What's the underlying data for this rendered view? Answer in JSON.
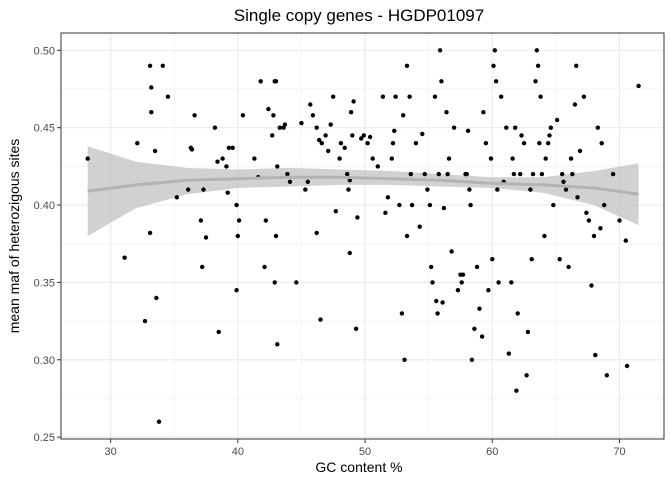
{
  "chart_data": {
    "type": "scatter",
    "title": "Single copy genes - HGDP01097",
    "xlabel": "GC content %",
    "ylabel": "mean maf of heterozigous sites",
    "xlim": [
      26.1,
      73.5
    ],
    "ylim": [
      0.2488,
      0.5112
    ],
    "x_ticks": [
      30,
      40,
      50,
      60,
      70
    ],
    "y_ticks": [
      0.25,
      0.3,
      0.35,
      0.4,
      0.45,
      0.5
    ],
    "x_tick_labels": [
      "30",
      "40",
      "50",
      "60",
      "70"
    ],
    "y_tick_labels": [
      "0.25",
      "0.30",
      "0.35",
      "0.40",
      "0.45",
      "0.50"
    ],
    "grid": true,
    "legend": "none",
    "colors": {
      "points": "#000000",
      "smooth_line": "#b3b3b3",
      "smooth_band": "#bebebe",
      "grid_major": "#ebebeb",
      "grid_minor": "#f5f5f5",
      "panel_border": "#333333"
    },
    "smooth": {
      "x": [
        28.2,
        32,
        36,
        40,
        44,
        48,
        52,
        56,
        60,
        64,
        68,
        71.5
      ],
      "y": [
        0.409,
        0.413,
        0.416,
        0.417,
        0.418,
        0.418,
        0.417,
        0.416,
        0.414,
        0.413,
        0.411,
        0.407
      ],
      "lower": [
        0.38,
        0.398,
        0.407,
        0.411,
        0.412,
        0.413,
        0.413,
        0.412,
        0.411,
        0.408,
        0.4,
        0.387
      ],
      "upper": [
        0.438,
        0.428,
        0.424,
        0.423,
        0.424,
        0.423,
        0.422,
        0.42,
        0.418,
        0.418,
        0.422,
        0.427
      ]
    },
    "points": [
      [
        28.2,
        0.43
      ],
      [
        31.1,
        0.366
      ],
      [
        32.1,
        0.44
      ],
      [
        32.7,
        0.325
      ],
      [
        33.1,
        0.49
      ],
      [
        33.2,
        0.476
      ],
      [
        33.2,
        0.46
      ],
      [
        33.1,
        0.382
      ],
      [
        33.5,
        0.435
      ],
      [
        33.6,
        0.34
      ],
      [
        33.8,
        0.26
      ],
      [
        34.1,
        0.49
      ],
      [
        34.5,
        0.47
      ],
      [
        35.2,
        0.405
      ],
      [
        36.1,
        0.41
      ],
      [
        36.3,
        0.437
      ],
      [
        36.4,
        0.436
      ],
      [
        36.6,
        0.458
      ],
      [
        37.1,
        0.39
      ],
      [
        37.3,
        0.41
      ],
      [
        37.2,
        0.36
      ],
      [
        37.5,
        0.379
      ],
      [
        38.2,
        0.45
      ],
      [
        38.4,
        0.428
      ],
      [
        38.5,
        0.318
      ],
      [
        38.8,
        0.43
      ],
      [
        39.1,
        0.425
      ],
      [
        39.3,
        0.437
      ],
      [
        39.2,
        0.408
      ],
      [
        39.6,
        0.437
      ],
      [
        39.9,
        0.4
      ],
      [
        40.1,
        0.39
      ],
      [
        40.0,
        0.38
      ],
      [
        39.9,
        0.345
      ],
      [
        40.4,
        0.458
      ],
      [
        41.3,
        0.43
      ],
      [
        41.6,
        0.418
      ],
      [
        41.8,
        0.48
      ],
      [
        42.1,
        0.36
      ],
      [
        42.2,
        0.39
      ],
      [
        42.4,
        0.462
      ],
      [
        42.7,
        0.445
      ],
      [
        42.8,
        0.458
      ],
      [
        42.9,
        0.48
      ],
      [
        43.0,
        0.48
      ],
      [
        43.0,
        0.38
      ],
      [
        42.9,
        0.35
      ],
      [
        43.1,
        0.31
      ],
      [
        43.1,
        0.425
      ],
      [
        43.3,
        0.45
      ],
      [
        43.6,
        0.45
      ],
      [
        43.7,
        0.452
      ],
      [
        43.9,
        0.42
      ],
      [
        44.1,
        0.415
      ],
      [
        44.6,
        0.35
      ],
      [
        45.0,
        0.453
      ],
      [
        45.3,
        0.41
      ],
      [
        45.5,
        0.415
      ],
      [
        45.7,
        0.465
      ],
      [
        45.9,
        0.458
      ],
      [
        46.2,
        0.45
      ],
      [
        46.2,
        0.382
      ],
      [
        46.5,
        0.326
      ],
      [
        46.4,
        0.442
      ],
      [
        46.6,
        0.44
      ],
      [
        46.9,
        0.445
      ],
      [
        47.1,
        0.435
      ],
      [
        47.3,
        0.452
      ],
      [
        47.5,
        0.47
      ],
      [
        47.7,
        0.396
      ],
      [
        48.0,
        0.43
      ],
      [
        48.1,
        0.44
      ],
      [
        48.4,
        0.437
      ],
      [
        48.6,
        0.42
      ],
      [
        48.7,
        0.41
      ],
      [
        48.8,
        0.416
      ],
      [
        48.8,
        0.369
      ],
      [
        48.9,
        0.46
      ],
      [
        49.1,
        0.467
      ],
      [
        49.0,
        0.445
      ],
      [
        49.3,
        0.32
      ],
      [
        49.4,
        0.392
      ],
      [
        49.7,
        0.443
      ],
      [
        49.9,
        0.445
      ],
      [
        50.2,
        0.44
      ],
      [
        50.4,
        0.444
      ],
      [
        50.6,
        0.43
      ],
      [
        51.0,
        0.425
      ],
      [
        51.4,
        0.47
      ],
      [
        51.6,
        0.395
      ],
      [
        51.8,
        0.405
      ],
      [
        52.1,
        0.43
      ],
      [
        52.2,
        0.44
      ],
      [
        52.3,
        0.448
      ],
      [
        52.4,
        0.47
      ],
      [
        52.7,
        0.4
      ],
      [
        52.9,
        0.33
      ],
      [
        53.0,
        0.458
      ],
      [
        53.1,
        0.3
      ],
      [
        53.3,
        0.38
      ],
      [
        53.3,
        0.49
      ],
      [
        53.5,
        0.47
      ],
      [
        53.6,
        0.42
      ],
      [
        53.7,
        0.4
      ],
      [
        54.0,
        0.44
      ],
      [
        54.3,
        0.386
      ],
      [
        54.5,
        0.446
      ],
      [
        54.7,
        0.42
      ],
      [
        54.9,
        0.41
      ],
      [
        55.1,
        0.4
      ],
      [
        55.2,
        0.36
      ],
      [
        55.3,
        0.35
      ],
      [
        55.5,
        0.47
      ],
      [
        55.6,
        0.338
      ],
      [
        55.7,
        0.33
      ],
      [
        55.8,
        0.42
      ],
      [
        55.9,
        0.5
      ],
      [
        56.0,
        0.48
      ],
      [
        56.1,
        0.337
      ],
      [
        56.2,
        0.398
      ],
      [
        56.4,
        0.46
      ],
      [
        56.5,
        0.42
      ],
      [
        56.6,
        0.43
      ],
      [
        56.8,
        0.37
      ],
      [
        57.0,
        0.45
      ],
      [
        57.3,
        0.345
      ],
      [
        57.5,
        0.355
      ],
      [
        57.6,
        0.35
      ],
      [
        57.7,
        0.355
      ],
      [
        57.9,
        0.42
      ],
      [
        58.0,
        0.42
      ],
      [
        58.1,
        0.448
      ],
      [
        58.2,
        0.41
      ],
      [
        58.3,
        0.4
      ],
      [
        58.4,
        0.3
      ],
      [
        58.6,
        0.32
      ],
      [
        58.8,
        0.36
      ],
      [
        59.0,
        0.333
      ],
      [
        59.2,
        0.315
      ],
      [
        59.3,
        0.46
      ],
      [
        59.5,
        0.44
      ],
      [
        59.7,
        0.345
      ],
      [
        59.9,
        0.43
      ],
      [
        60.0,
        0.365
      ],
      [
        60.1,
        0.49
      ],
      [
        60.2,
        0.5
      ],
      [
        60.3,
        0.48
      ],
      [
        60.4,
        0.41
      ],
      [
        60.5,
        0.35
      ],
      [
        60.7,
        0.47
      ],
      [
        60.9,
        0.415
      ],
      [
        61.1,
        0.45
      ],
      [
        61.3,
        0.304
      ],
      [
        61.5,
        0.35
      ],
      [
        61.6,
        0.43
      ],
      [
        61.7,
        0.42
      ],
      [
        61.8,
        0.45
      ],
      [
        61.9,
        0.28
      ],
      [
        62.0,
        0.33
      ],
      [
        62.2,
        0.42
      ],
      [
        62.3,
        0.445
      ],
      [
        62.5,
        0.44
      ],
      [
        62.7,
        0.29
      ],
      [
        62.8,
        0.318
      ],
      [
        63.0,
        0.41
      ],
      [
        63.1,
        0.365
      ],
      [
        63.2,
        0.42
      ],
      [
        63.4,
        0.48
      ],
      [
        63.5,
        0.5
      ],
      [
        63.6,
        0.49
      ],
      [
        63.7,
        0.44
      ],
      [
        63.8,
        0.47
      ],
      [
        63.9,
        0.42
      ],
      [
        64.1,
        0.38
      ],
      [
        64.2,
        0.43
      ],
      [
        64.4,
        0.44
      ],
      [
        64.5,
        0.445
      ],
      [
        64.6,
        0.45
      ],
      [
        64.8,
        0.4
      ],
      [
        65.1,
        0.455
      ],
      [
        65.3,
        0.365
      ],
      [
        65.5,
        0.42
      ],
      [
        65.6,
        0.415
      ],
      [
        65.8,
        0.41
      ],
      [
        66.0,
        0.36
      ],
      [
        66.2,
        0.43
      ],
      [
        66.3,
        0.42
      ],
      [
        66.5,
        0.465
      ],
      [
        66.6,
        0.49
      ],
      [
        66.7,
        0.405
      ],
      [
        66.9,
        0.435
      ],
      [
        67.2,
        0.47
      ],
      [
        67.4,
        0.395
      ],
      [
        67.6,
        0.39
      ],
      [
        67.8,
        0.348
      ],
      [
        68.0,
        0.38
      ],
      [
        68.1,
        0.303
      ],
      [
        68.3,
        0.45
      ],
      [
        68.5,
        0.385
      ],
      [
        68.6,
        0.44
      ],
      [
        68.8,
        0.4
      ],
      [
        69.0,
        0.29
      ],
      [
        69.5,
        0.42
      ],
      [
        70.0,
        0.39
      ],
      [
        70.6,
        0.296
      ],
      [
        70.5,
        0.377
      ],
      [
        71.5,
        0.477
      ]
    ]
  }
}
